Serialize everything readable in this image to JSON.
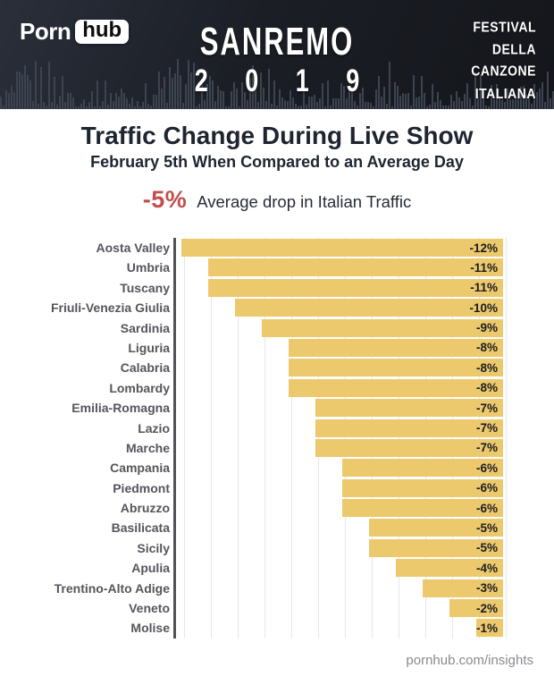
{
  "header": {
    "logo": {
      "porn": "Porn",
      "hub": "hub"
    },
    "event_title": "SANREMO",
    "event_year": "2 0 1 9",
    "right_block_lines": [
      "FESTIVAL",
      "DELLA",
      "CANZONE",
      "ITALIANA"
    ]
  },
  "main": {
    "title": "Traffic Change During Live Show",
    "subtitle": "February 5th When Compared to an Average Day",
    "stat": {
      "value": "-5%",
      "label": "Average drop in Italian Traffic",
      "value_color": "#c1504d"
    }
  },
  "chart_data": {
    "type": "bar",
    "orientation": "horizontal",
    "title": "Traffic Change During Live Show",
    "xlabel": "",
    "ylabel": "",
    "xlim": [
      -12,
      0
    ],
    "grid": true,
    "unit": "%",
    "bar_color": "#ecc96d",
    "axis_color": "#515257",
    "gridline_color": "#e7e7e9",
    "categories": [
      "Aosta Valley",
      "Umbria",
      "Tuscany",
      "Friuli-Venezia Giulia",
      "Sardinia",
      "Liguria",
      "Calabria",
      "Lombardy",
      "Emilia-Romagna",
      "Lazio",
      "Marche",
      "Campania",
      "Piedmont",
      "Abruzzo",
      "Basilicata",
      "Sicily",
      "Apulia",
      "Trentino-Alto Adige",
      "Veneto",
      "Molise"
    ],
    "values": [
      -12,
      -11,
      -11,
      -10,
      -9,
      -8,
      -8,
      -8,
      -7,
      -7,
      -7,
      -6,
      -6,
      -6,
      -5,
      -5,
      -4,
      -3,
      -2,
      -1
    ],
    "value_labels": [
      "-12%",
      "-11%",
      "-11%",
      "-10%",
      "-9%",
      "-8%",
      "-8%",
      "-8%",
      "-7%",
      "-7%",
      "-7%",
      "-6%",
      "-6%",
      "-6%",
      "-5%",
      "-5%",
      "-4%",
      "-3%",
      "-2%",
      "-1%"
    ]
  },
  "footer": {
    "site": "pornhub.com/insights"
  }
}
